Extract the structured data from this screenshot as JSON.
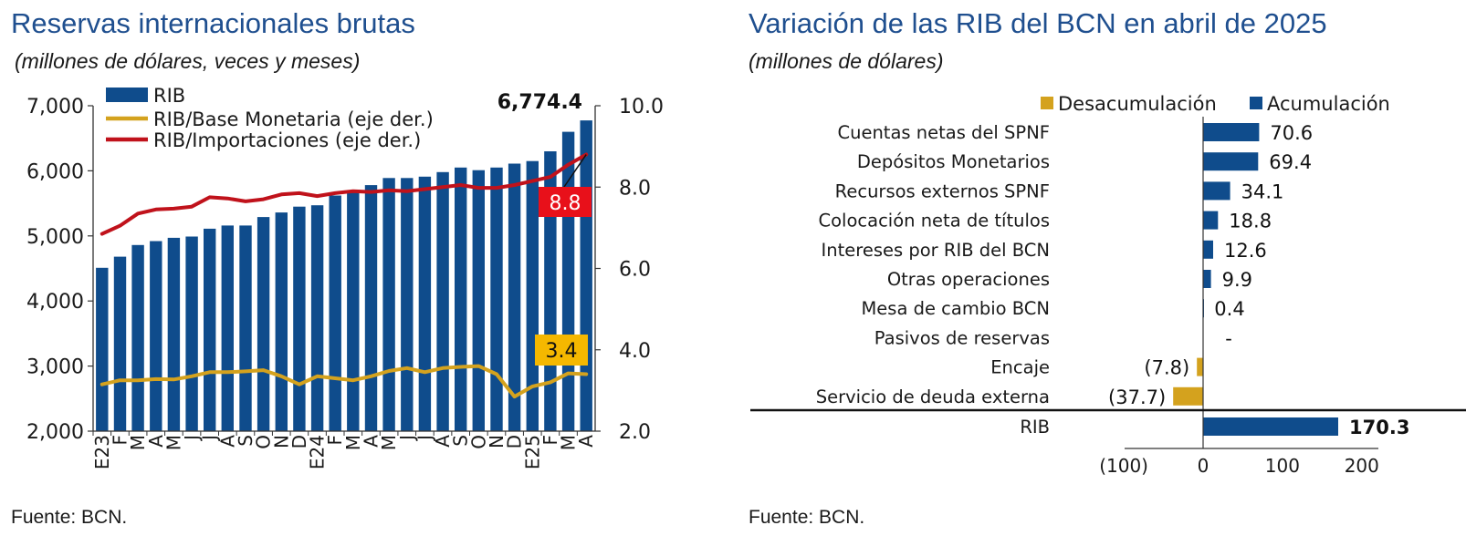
{
  "chart_data": [
    {
      "type": "bar",
      "title": "Reservas internacionales brutas",
      "subtitle": "(millones de dólares, veces y meses)",
      "source": "Fuente: BCN.",
      "categories": [
        "E23",
        "F",
        "M",
        "A",
        "M",
        "J",
        "J",
        "A",
        "S",
        "O",
        "N",
        "D",
        "E24",
        "F",
        "M",
        "A",
        "M",
        "J",
        "J",
        "A",
        "S",
        "O",
        "N",
        "D",
        "E25",
        "F",
        "M",
        "A"
      ],
      "ylim": [
        2000,
        7000
      ],
      "yticks": [
        "2,000",
        "3,000",
        "4,000",
        "5,000",
        "6,000",
        "7,000"
      ],
      "y2lim": [
        2.0,
        10.0
      ],
      "y2ticks": [
        "2.0",
        "4.0",
        "6.0",
        "8.0",
        "10.0"
      ],
      "series": [
        {
          "name": "RIB",
          "kind": "bar",
          "axis": "left",
          "color": "#0f4c8c",
          "values": [
            4510,
            4680,
            4860,
            4920,
            4970,
            4990,
            5110,
            5160,
            5160,
            5290,
            5360,
            5450,
            5470,
            5620,
            5700,
            5780,
            5890,
            5890,
            5910,
            5980,
            6050,
            6010,
            6050,
            6110,
            6150,
            6300,
            6600,
            6774.4
          ]
        },
        {
          "name": "RIB/Base Monetaria (eje der.)",
          "kind": "line",
          "axis": "right",
          "color": "#d4a21e",
          "values": [
            3.15,
            3.25,
            3.25,
            3.28,
            3.27,
            3.35,
            3.45,
            3.45,
            3.47,
            3.5,
            3.35,
            3.15,
            3.35,
            3.3,
            3.25,
            3.35,
            3.48,
            3.55,
            3.45,
            3.55,
            3.58,
            3.6,
            3.4,
            2.85,
            3.1,
            3.2,
            3.42,
            3.4
          ]
        },
        {
          "name": "RIB/Importaciones (eje der.)",
          "kind": "line",
          "axis": "right",
          "color": "#c0121b",
          "values": [
            6.85,
            7.05,
            7.35,
            7.45,
            7.47,
            7.52,
            7.75,
            7.72,
            7.65,
            7.7,
            7.82,
            7.85,
            7.78,
            7.85,
            7.9,
            7.88,
            7.92,
            7.9,
            7.95,
            8.0,
            8.05,
            7.98,
            7.98,
            8.05,
            8.15,
            8.25,
            8.55,
            8.8
          ]
        }
      ],
      "annotations": [
        {
          "text": "6,774.4",
          "target": "RIB"
        },
        {
          "text": "8.8",
          "target": "RIB/Importaciones (eje der.)",
          "bg": "#e8101a"
        },
        {
          "text": "3.4",
          "target": "RIB/Base Monetaria (eje der.)",
          "bg": "#f5b800"
        }
      ]
    },
    {
      "type": "bar",
      "orientation": "horizontal",
      "title": "Variación de las RIB del BCN en abril de 2025",
      "subtitle": "(millones de dólares)",
      "source": "Fuente: BCN.",
      "legend": [
        {
          "name": "Desacumulación",
          "color": "#d4a21e"
        },
        {
          "name": "Acumulación",
          "color": "#0f4c8c"
        }
      ],
      "xlim": [
        -100,
        200
      ],
      "xticks": [
        "(100)",
        "0",
        "100",
        "200"
      ],
      "categories": [
        "Cuentas netas del SPNF",
        "Depósitos Monetarios",
        "Recursos externos SPNF",
        "Colocación neta de títulos",
        "Intereses por RIB del BCN",
        "Otras operaciones",
        "Mesa de cambio BCN",
        "Pasivos de reservas",
        "Encaje",
        "Servicio de deuda externa",
        "RIB"
      ],
      "values": [
        70.6,
        69.4,
        34.1,
        18.8,
        12.6,
        9.9,
        0.4,
        0,
        -7.8,
        -37.7,
        170.3
      ],
      "labels": [
        "70.6",
        "69.4",
        "34.1",
        "18.8",
        "12.6",
        "9.9",
        "0.4",
        "-",
        "(7.8)",
        "(37.7)",
        "170.3"
      ]
    }
  ]
}
